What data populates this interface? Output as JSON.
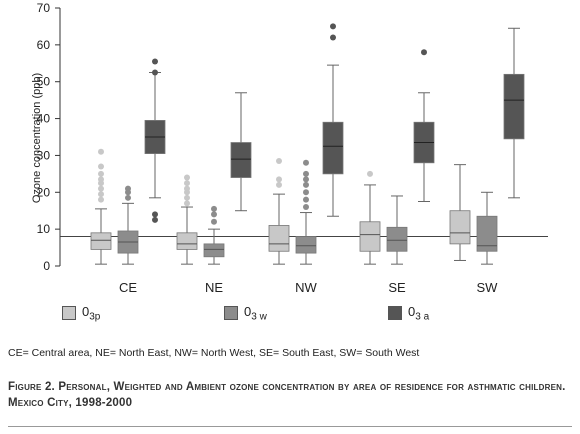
{
  "chart_data": {
    "type": "boxplot",
    "ylabel": "Ozone concentration (ppb)",
    "ylim": [
      0,
      70
    ],
    "yticks": [
      0,
      10,
      20,
      30,
      40,
      50,
      60,
      70
    ],
    "reference_line": 8,
    "categories": [
      "CE",
      "NE",
      "NW",
      "SE",
      "SW"
    ],
    "series": [
      {
        "name": "0",
        "sub": "3p",
        "color": "#c8c8c8",
        "boxes": [
          {
            "min": 0.5,
            "q1": 4.5,
            "median": 7,
            "q3": 9,
            "max": 15.5,
            "outliers": [
              18,
              19.5,
              21,
              22.5,
              23.5,
              25,
              27,
              31
            ]
          },
          {
            "min": 0.5,
            "q1": 4.5,
            "median": 6,
            "q3": 9,
            "max": 16,
            "outliers": [
              17,
              18.5,
              20,
              21,
              22.5,
              24
            ]
          },
          {
            "min": 0.5,
            "q1": 4,
            "median": 6,
            "q3": 11,
            "max": 19.5,
            "outliers": [
              22,
              23.5,
              28.5
            ]
          },
          {
            "min": 0.5,
            "q1": 4,
            "median": 8.5,
            "q3": 12,
            "max": 22,
            "outliers": [
              25
            ]
          },
          {
            "min": 1.5,
            "q1": 6,
            "median": 9,
            "q3": 15,
            "max": 27.5,
            "outliers": []
          }
        ]
      },
      {
        "name": "0",
        "sub": "3w",
        "color": "#8c8c8c",
        "boxes": [
          {
            "min": 0.5,
            "q1": 3.5,
            "median": 6.5,
            "q3": 9.5,
            "max": 17,
            "outliers": [
              18.5,
              20,
              21
            ]
          },
          {
            "min": 0.5,
            "q1": 2.5,
            "median": 4.5,
            "q3": 6,
            "max": 10,
            "outliers": [
              12,
              14,
              15.5
            ]
          },
          {
            "min": 0.5,
            "q1": 3.5,
            "median": 5.5,
            "q3": 8,
            "max": 14.5,
            "outliers": [
              16,
              18,
              20,
              22,
              23.5,
              25,
              28
            ]
          },
          {
            "min": 0.5,
            "q1": 4,
            "median": 7,
            "q3": 10.5,
            "max": 19,
            "outliers": []
          },
          {
            "min": 0.5,
            "q1": 4,
            "median": 5.5,
            "q3": 13.5,
            "max": 20,
            "outliers": []
          }
        ]
      },
      {
        "name": "0",
        "sub": "3a",
        "color": "#555555",
        "boxes": [
          {
            "min": 18.5,
            "q1": 30.5,
            "median": 35,
            "q3": 39.5,
            "max": 52.5,
            "outliers": [
              12.5,
              14,
              52.5,
              55.5
            ]
          },
          {
            "min": 15,
            "q1": 24,
            "median": 29,
            "q3": 33.5,
            "max": 47,
            "outliers": []
          },
          {
            "min": 13.5,
            "q1": 25,
            "median": 32.5,
            "q3": 39,
            "max": 54.5,
            "outliers": [
              62,
              65
            ]
          },
          {
            "min": 17.5,
            "q1": 28,
            "median": 33.5,
            "q3": 39,
            "max": 47,
            "outliers": [
              58
            ]
          },
          {
            "min": 18.5,
            "q1": 34.5,
            "median": 45,
            "q3": 52,
            "max": 64.5,
            "outliers": []
          }
        ]
      }
    ]
  },
  "legend": [
    {
      "base": "0",
      "sub": "3p",
      "color": "#c8c8c8"
    },
    {
      "base": "0",
      "sub": "3 w",
      "color": "#8c8c8c"
    },
    {
      "base": "0",
      "sub": "3 a",
      "color": "#555555"
    }
  ],
  "abbreviations": "CE= Central area, NE= North East, NW= North West, SE= South East, SW= South West",
  "caption": "Figure 2. Personal, Weighted and Ambient ozone concentration by area of residence for asthmatic children. Mexico City, 1998-2000"
}
